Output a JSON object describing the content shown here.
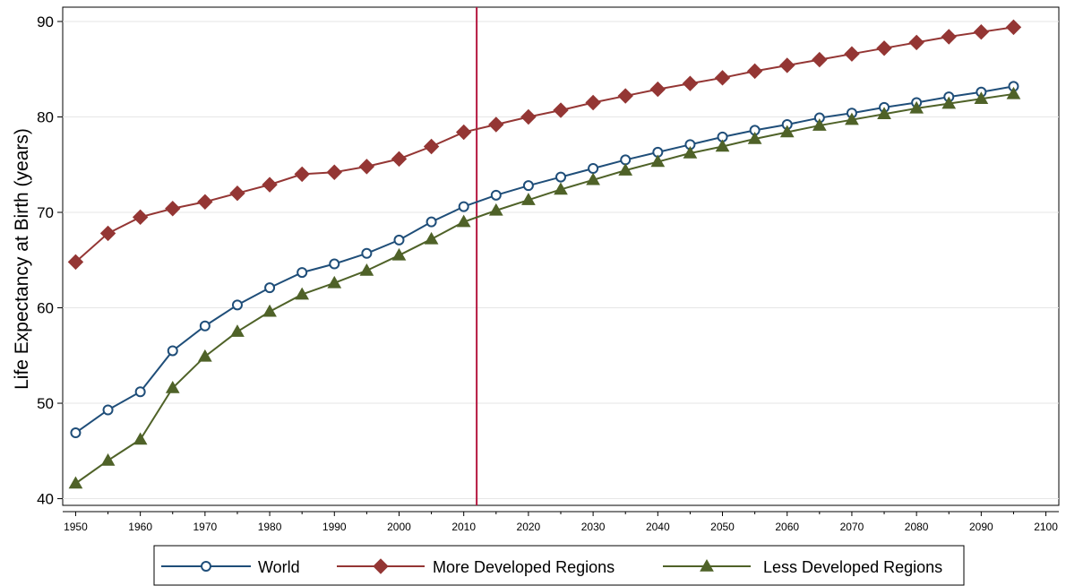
{
  "chart_data": {
    "type": "line",
    "title": "",
    "xlabel": "",
    "ylabel": "Life Expectancy at Birth (years)",
    "xlim": [
      1948,
      2102
    ],
    "ylim": [
      39.3,
      91.5
    ],
    "x_ticks": [
      1950,
      1960,
      1970,
      1980,
      1990,
      2000,
      2010,
      2020,
      2030,
      2040,
      2050,
      2060,
      2070,
      2080,
      2090,
      2100
    ],
    "x_ticks_minor": [
      1955,
      1965,
      1975,
      1985,
      1995,
      2005,
      2015,
      2025,
      2035,
      2045,
      2055,
      2065,
      2075,
      2085,
      2095
    ],
    "y_ticks": [
      40,
      50,
      60,
      70,
      80,
      90
    ],
    "grid": true,
    "legend_placement": "bottom",
    "reference_line": {
      "x": 2012,
      "color": "#b5173f"
    },
    "x": [
      1950,
      1955,
      1960,
      1965,
      1970,
      1975,
      1980,
      1985,
      1990,
      1995,
      2000,
      2005,
      2010,
      2015,
      2020,
      2025,
      2030,
      2035,
      2040,
      2045,
      2050,
      2055,
      2060,
      2065,
      2070,
      2075,
      2080,
      2085,
      2090,
      2095
    ],
    "series": [
      {
        "name": "World",
        "color": "#1f4e79",
        "marker": "circle",
        "values": [
          46.9,
          49.3,
          51.2,
          55.5,
          58.1,
          60.3,
          62.1,
          63.7,
          64.6,
          65.7,
          67.1,
          69.0,
          70.6,
          71.8,
          72.8,
          73.7,
          74.6,
          75.5,
          76.3,
          77.1,
          77.9,
          78.6,
          79.2,
          79.9,
          80.4,
          81.0,
          81.5,
          82.1,
          82.6,
          83.2
        ]
      },
      {
        "name": "More Developed Regions",
        "color": "#943634",
        "marker": "diamond",
        "values": [
          64.8,
          67.8,
          69.5,
          70.4,
          71.1,
          72.0,
          72.9,
          74.0,
          74.2,
          74.8,
          75.6,
          76.9,
          78.4,
          79.2,
          80.0,
          80.7,
          81.5,
          82.2,
          82.9,
          83.5,
          84.1,
          84.8,
          85.4,
          86.0,
          86.6,
          87.2,
          87.8,
          88.4,
          88.9,
          89.4
        ]
      },
      {
        "name": "Less Developed Regions",
        "color": "#4f6228",
        "marker": "triangle",
        "values": [
          41.6,
          44.0,
          46.2,
          51.6,
          54.9,
          57.5,
          59.6,
          61.4,
          62.6,
          63.9,
          65.5,
          67.2,
          69.0,
          70.2,
          71.3,
          72.4,
          73.4,
          74.4,
          75.3,
          76.2,
          76.9,
          77.7,
          78.4,
          79.1,
          79.7,
          80.3,
          80.9,
          81.4,
          81.9,
          82.4
        ]
      }
    ]
  }
}
